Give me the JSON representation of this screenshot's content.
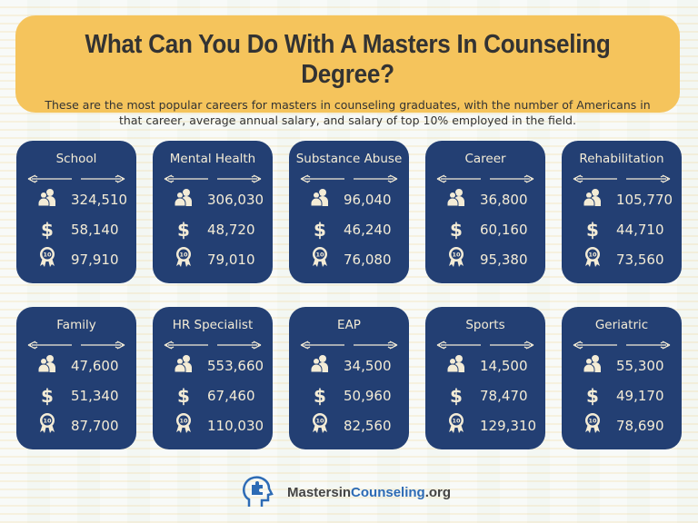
{
  "header": {
    "title": "What Can You Do With A Masters In Counseling Degree?",
    "subtitle": "These are the most popular careers for masters in counseling graduates, with the number of Americans in that career, average annual salary, and salary of top 10% employed in the field."
  },
  "colors": {
    "banner": "#f5c45c",
    "card": "#233f73",
    "text": "#f4ecd6",
    "logo_blue": "#2d6bb5"
  },
  "icons": {
    "employed": "people-icon",
    "salary": "dollar-icon",
    "top10": "award-ribbon-icon"
  },
  "cards": [
    {
      "title": "School",
      "employed": "324,510",
      "salary": "58,140",
      "top10": "97,910"
    },
    {
      "title": "Mental Health",
      "employed": "306,030",
      "salary": "48,720",
      "top10": "79,010"
    },
    {
      "title": "Substance Abuse",
      "employed": "96,040",
      "salary": "46,240",
      "top10": "76,080"
    },
    {
      "title": "Career",
      "employed": "36,800",
      "salary": "60,160",
      "top10": "95,380"
    },
    {
      "title": "Rehabilitation",
      "employed": "105,770",
      "salary": "44,710",
      "top10": "73,560"
    },
    {
      "title": "Family",
      "employed": "47,600",
      "salary": "51,340",
      "top10": "87,700"
    },
    {
      "title": "HR Specialist",
      "employed": "553,660",
      "salary": "67,460",
      "top10": "110,030"
    },
    {
      "title": "EAP",
      "employed": "34,500",
      "salary": "50,960",
      "top10": "82,560"
    },
    {
      "title": "Sports",
      "employed": "14,500",
      "salary": "78,470",
      "top10": "129,310"
    },
    {
      "title": "Geriatric",
      "employed": "55,300",
      "salary": "49,170",
      "top10": "78,690"
    }
  ],
  "logo": {
    "part1": "Mastersin",
    "part2": "Counseling",
    ".org": ".org",
    "part3": ".org"
  }
}
